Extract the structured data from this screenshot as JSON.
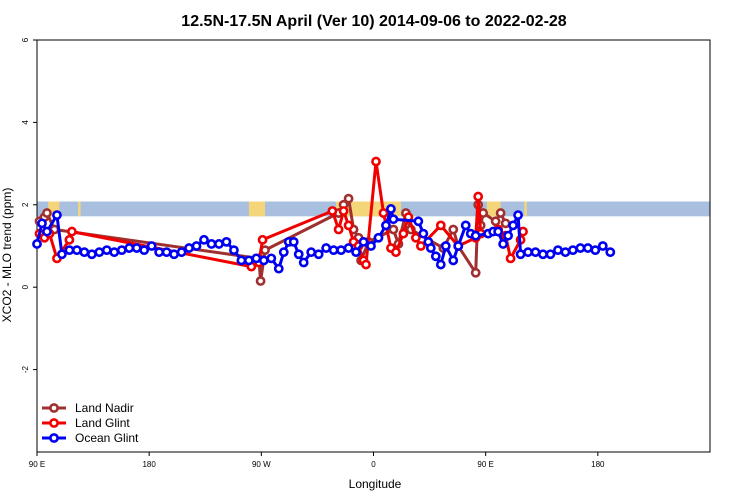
{
  "chart_data": {
    "type": "line",
    "title": "12.5N-17.5N April (Ver 10)   2014-09-06 to 2022-02-28",
    "xlabel": "Longitude",
    "ylabel": "XCO2 - MLO trend (ppm)",
    "xlim": [
      -90,
      180
    ],
    "ylim": [
      -4,
      6
    ],
    "x_ticks": [
      {
        "value": -90,
        "label": "90 E"
      },
      {
        "value": -45,
        "label": "180"
      },
      {
        "value": 0,
        "label": "90 W"
      },
      {
        "value": 45,
        "label": "0"
      },
      {
        "value": 90,
        "label": "90 E"
      },
      {
        "value": 135,
        "label": "180"
      }
    ],
    "y_ticks": [
      {
        "value": -2,
        "label": "-2"
      },
      {
        "value": 0,
        "label": "0"
      },
      {
        "value": 2,
        "label": "2"
      },
      {
        "value": 4,
        "label": "4"
      },
      {
        "value": 6,
        "label": "6"
      }
    ],
    "grid": false,
    "legend_position": "bottom-left",
    "land_band": {
      "y_range": [
        1.72,
        2.08
      ],
      "ocean_color": "#a8bfe0",
      "land_color": "#f5d57a",
      "land_x_ranges": [
        [
          -85.5,
          -81
        ],
        [
          -73.5,
          -72.5
        ],
        [
          -5,
          1.5
        ],
        [
          30,
          56
        ],
        [
          90.5,
          96
        ],
        [
          105.5,
          106.5
        ]
      ]
    },
    "series": [
      {
        "name": "Land Nadir",
        "color": "#a0302f",
        "points": [
          [
            -89,
            1.6
          ],
          [
            -87,
            1.7
          ],
          [
            -86,
            1.8
          ],
          [
            -83,
            1.4
          ],
          [
            -1,
            0.7
          ],
          [
            -0.3,
            0.15
          ],
          [
            1.5,
            0.9
          ],
          [
            31,
            1.8
          ],
          [
            33,
            2.0
          ],
          [
            35,
            2.15
          ],
          [
            37,
            1.4
          ],
          [
            39,
            1.2
          ],
          [
            40,
            0.65
          ],
          [
            43,
            1.1
          ],
          [
            53,
            1.4
          ],
          [
            55,
            1.05
          ],
          [
            58,
            1.8
          ],
          [
            60,
            1.4
          ],
          [
            73,
            0.95
          ],
          [
            77,
            1.4
          ],
          [
            79,
            1.0
          ],
          [
            86,
            0.35
          ],
          [
            87,
            2.0
          ],
          [
            88,
            1.5
          ],
          [
            89,
            1.8
          ],
          [
            94,
            1.6
          ],
          [
            96,
            1.8
          ],
          [
            98,
            1.55
          ]
        ]
      },
      {
        "name": "Land Glint",
        "color": "#f00000",
        "points": [
          [
            -89,
            1.3
          ],
          [
            -87,
            1.2
          ],
          [
            -85,
            1.3
          ],
          [
            -82,
            0.7
          ],
          [
            -77,
            1.15
          ],
          [
            -76,
            1.35
          ],
          [
            -4,
            0.5
          ],
          [
            -1,
            0.6
          ],
          [
            0.5,
            1.15
          ],
          [
            28.5,
            1.85
          ],
          [
            31,
            1.4
          ],
          [
            33,
            1.85
          ],
          [
            35,
            1.5
          ],
          [
            37,
            1.1
          ],
          [
            39,
            1.0
          ],
          [
            41,
            0.65
          ],
          [
            42,
            0.55
          ],
          [
            46,
            3.05
          ],
          [
            49,
            1.8
          ],
          [
            52,
            0.95
          ],
          [
            54,
            0.85
          ],
          [
            57,
            1.3
          ],
          [
            59,
            1.7
          ],
          [
            62,
            1.2
          ],
          [
            64,
            1.0
          ],
          [
            72,
            1.5
          ],
          [
            79,
            1.0
          ],
          [
            86,
            1.2
          ],
          [
            87,
            2.2
          ],
          [
            88,
            1.3
          ],
          [
            95,
            1.4
          ],
          [
            98,
            1.25
          ],
          [
            100,
            0.7
          ],
          [
            104,
            1.15
          ],
          [
            105,
            1.35
          ]
        ]
      },
      {
        "name": "Ocean Glint",
        "color": "#0000f0",
        "points": [
          [
            -90,
            1.05
          ],
          [
            -88,
            1.55
          ],
          [
            -86,
            1.35
          ],
          [
            -82,
            1.75
          ],
          [
            -80,
            0.8
          ],
          [
            -77,
            0.9
          ],
          [
            -74,
            0.9
          ],
          [
            -71,
            0.85
          ],
          [
            -68,
            0.8
          ],
          [
            -65,
            0.85
          ],
          [
            -62,
            0.9
          ],
          [
            -59,
            0.85
          ],
          [
            -56,
            0.9
          ],
          [
            -53,
            0.95
          ],
          [
            -50,
            0.95
          ],
          [
            -47,
            0.9
          ],
          [
            -44,
            1.0
          ],
          [
            -41,
            0.85
          ],
          [
            -38,
            0.85
          ],
          [
            -35,
            0.8
          ],
          [
            -32,
            0.85
          ],
          [
            -29,
            0.95
          ],
          [
            -26,
            1.0
          ],
          [
            -23,
            1.15
          ],
          [
            -20,
            1.05
          ],
          [
            -17,
            1.05
          ],
          [
            -14,
            1.1
          ],
          [
            -11,
            0.9
          ],
          [
            -8,
            0.65
          ],
          [
            -5,
            0.65
          ],
          [
            -2,
            0.7
          ],
          [
            1,
            0.65
          ],
          [
            4,
            0.7
          ],
          [
            7,
            0.45
          ],
          [
            9,
            0.85
          ],
          [
            11,
            1.1
          ],
          [
            13,
            1.1
          ],
          [
            15,
            0.8
          ],
          [
            17,
            0.6
          ],
          [
            20,
            0.85
          ],
          [
            23,
            0.8
          ],
          [
            26,
            0.95
          ],
          [
            29,
            0.9
          ],
          [
            32,
            0.9
          ],
          [
            35,
            0.95
          ],
          [
            38,
            0.85
          ],
          [
            41,
            1.1
          ],
          [
            44,
            1.0
          ],
          [
            47,
            1.2
          ],
          [
            50,
            1.5
          ],
          [
            52,
            1.9
          ],
          [
            53,
            1.65
          ],
          [
            63,
            1.6
          ],
          [
            65,
            1.3
          ],
          [
            67,
            1.1
          ],
          [
            68,
            0.95
          ],
          [
            70,
            0.75
          ],
          [
            72,
            0.55
          ],
          [
            74,
            1.0
          ],
          [
            77,
            0.65
          ],
          [
            79,
            1.0
          ],
          [
            82,
            1.5
          ],
          [
            84,
            1.3
          ],
          [
            86,
            1.25
          ],
          [
            91,
            1.3
          ],
          [
            93,
            1.35
          ],
          [
            95,
            1.35
          ],
          [
            97,
            1.05
          ],
          [
            99,
            1.25
          ],
          [
            101,
            1.5
          ],
          [
            103,
            1.75
          ],
          [
            104,
            0.8
          ],
          [
            107,
            0.85
          ],
          [
            110,
            0.85
          ],
          [
            113,
            0.8
          ],
          [
            116,
            0.8
          ],
          [
            119,
            0.9
          ],
          [
            122,
            0.85
          ],
          [
            125,
            0.9
          ],
          [
            128,
            0.95
          ],
          [
            131,
            0.95
          ],
          [
            134,
            0.9
          ],
          [
            137,
            1.0
          ],
          [
            140,
            0.85
          ]
        ]
      }
    ]
  }
}
